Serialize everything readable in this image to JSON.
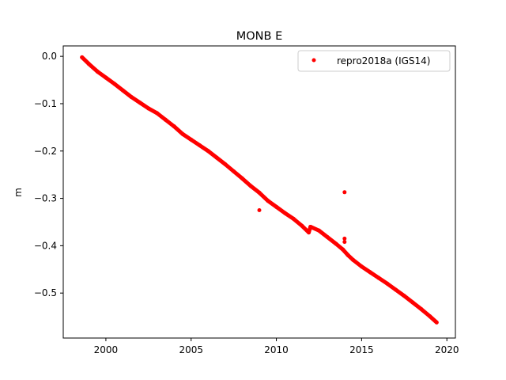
{
  "chart_data": {
    "type": "scatter",
    "title": "MONB E",
    "xlabel": "",
    "ylabel": "m",
    "xlim": [
      1997.5,
      2020.5
    ],
    "ylim": [
      -0.595,
      0.022
    ],
    "xticks": [
      2000,
      2005,
      2010,
      2015,
      2020
    ],
    "yticks": [
      0.0,
      -0.1,
      -0.2,
      -0.3,
      -0.4,
      -0.5
    ],
    "ytick_labels": [
      "0.0",
      "−0.1",
      "−0.2",
      "−0.3",
      "−0.4",
      "−0.5"
    ],
    "grid": false,
    "legend": {
      "placement": "top-right",
      "entries": [
        "repro2018a (IGS14)"
      ]
    },
    "series": [
      {
        "name": "repro2018a (IGS14)",
        "color": "#ff0000",
        "marker": "circle",
        "x": [
          1998.6,
          1999.0,
          1999.5,
          2000.0,
          2000.5,
          2001.0,
          2001.5,
          2002.0,
          2002.5,
          2003.0,
          2003.5,
          2004.0,
          2004.5,
          2005.0,
          2005.5,
          2006.0,
          2006.5,
          2007.0,
          2007.5,
          2008.0,
          2008.5,
          2009.0,
          2009.5,
          2010.0,
          2010.5,
          2011.0,
          2011.5,
          2011.9,
          2012.0,
          2012.5,
          2013.0,
          2013.5,
          2013.9,
          2014.2,
          2014.5,
          2015.0,
          2015.5,
          2016.0,
          2016.5,
          2017.0,
          2017.5,
          2018.0,
          2018.5,
          2019.0,
          2019.4,
          2009.0,
          2014.0,
          2014.0,
          2014.0
        ],
        "y": [
          -0.002,
          -0.016,
          -0.032,
          -0.045,
          -0.058,
          -0.072,
          -0.086,
          -0.098,
          -0.11,
          -0.12,
          -0.134,
          -0.148,
          -0.164,
          -0.176,
          -0.188,
          -0.2,
          -0.214,
          -0.228,
          -0.243,
          -0.258,
          -0.274,
          -0.288,
          -0.305,
          -0.318,
          -0.331,
          -0.343,
          -0.358,
          -0.372,
          -0.36,
          -0.368,
          -0.382,
          -0.396,
          -0.408,
          -0.42,
          -0.43,
          -0.444,
          -0.456,
          -0.468,
          -0.48,
          -0.493,
          -0.506,
          -0.52,
          -0.534,
          -0.549,
          -0.562,
          -0.325,
          -0.287,
          -0.385,
          -0.392
        ]
      }
    ]
  }
}
